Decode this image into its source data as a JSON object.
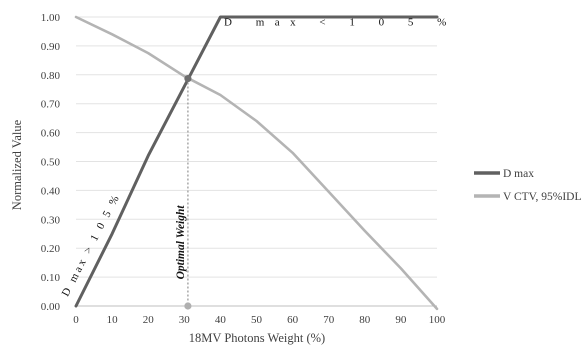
{
  "chart_data": {
    "type": "line",
    "xlabel": "18MV Photons Weight (%)",
    "ylabel": "Normalized Value",
    "xlim": [
      0,
      100
    ],
    "ylim": [
      0,
      1
    ],
    "xticks": [
      0,
      10,
      20,
      30,
      40,
      50,
      60,
      70,
      80,
      90,
      100
    ],
    "xtick_labels": [
      "0",
      "10",
      "20",
      "30",
      "40",
      "50",
      "60",
      "70",
      "80",
      "90",
      "100"
    ],
    "yticks": [
      0,
      0.1,
      0.2,
      0.3,
      0.4,
      0.5,
      0.6,
      0.7,
      0.8,
      0.9,
      1.0
    ],
    "ytick_labels": [
      "0.00",
      "0.10",
      "0.20",
      "0.30",
      "0.40",
      "0.50",
      "0.60",
      "0.70",
      "0.80",
      "0.90",
      "1.00"
    ],
    "grid": "horizontal",
    "legend": "right",
    "series": [
      {
        "name": "D max",
        "color": "#606060",
        "x": [
          0,
          10,
          20,
          30,
          40,
          50,
          60,
          70,
          80,
          90,
          100
        ],
        "y": [
          0,
          0.25,
          0.52,
          0.76,
          1.0,
          1.0,
          1.0,
          1.0,
          1.0,
          1.0,
          1.0
        ]
      },
      {
        "name": "V CTV, 95%IDL",
        "color": "#b4b4b4",
        "x": [
          0,
          10,
          20,
          30,
          40,
          50,
          60,
          70,
          80,
          90,
          100
        ],
        "y": [
          1.0,
          0.94,
          0.875,
          0.795,
          0.73,
          0.64,
          0.53,
          0.395,
          0.26,
          0.13,
          -0.01
        ]
      }
    ],
    "intersection": {
      "x": 31,
      "y": 0.787
    },
    "vertical_marker": {
      "x": 31,
      "label": "Optimal Weight"
    },
    "annotations": [
      {
        "id": "rising",
        "text": "D max > 1 0 5 %"
      },
      {
        "id": "flat",
        "text": "D max < 1 0 5 %"
      }
    ]
  }
}
